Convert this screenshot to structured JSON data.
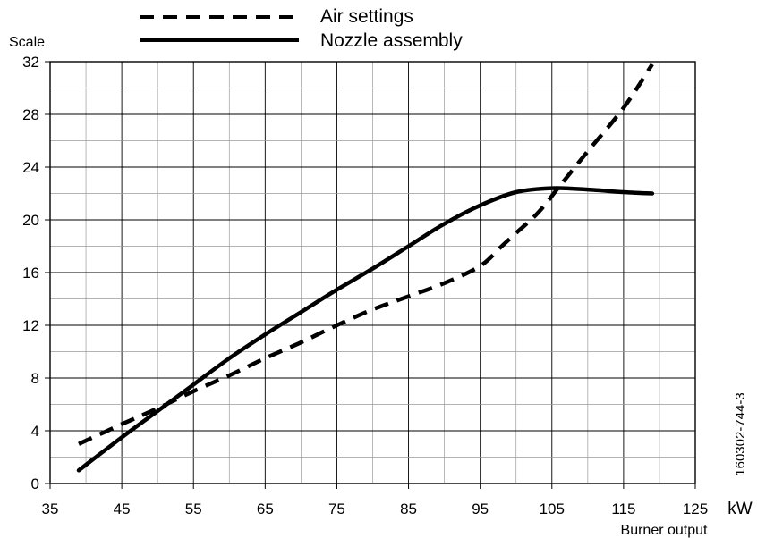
{
  "chart_data": {
    "type": "line",
    "ylabel": "Scale",
    "xlabel": "Burner output",
    "xunit": "kW",
    "figure_id": "160302-744-3",
    "xlim": [
      35,
      125
    ],
    "ylim": [
      0,
      32
    ],
    "xticks": [
      35,
      45,
      55,
      65,
      75,
      85,
      95,
      105,
      115,
      125
    ],
    "yticks": [
      0,
      4,
      8,
      12,
      16,
      20,
      24,
      28,
      32
    ],
    "x_minor_step": 5,
    "y_minor_step": 2,
    "grid": true,
    "legend_position": "top",
    "series": [
      {
        "name": "Air settings",
        "style": "dashed",
        "x": [
          39,
          45,
          50,
          55,
          60,
          65,
          70,
          75,
          80,
          85,
          90,
          95,
          98,
          100,
          103,
          106,
          110,
          115,
          119
        ],
        "y": [
          3,
          4.5,
          5.7,
          7,
          8.2,
          9.5,
          10.7,
          12,
          13.2,
          14.2,
          15.2,
          16.5,
          18,
          19,
          20.5,
          22.5,
          25.2,
          28.5,
          31.8
        ]
      },
      {
        "name": "Nozzle assembly",
        "style": "solid",
        "x": [
          39,
          45,
          50,
          55,
          60,
          65,
          70,
          75,
          80,
          85,
          90,
          95,
          100,
          105,
          110,
          115,
          119
        ],
        "y": [
          1,
          3.5,
          5.5,
          7.5,
          9.5,
          11.3,
          13,
          14.7,
          16.3,
          18,
          19.7,
          21.1,
          22.1,
          22.4,
          22.3,
          22.1,
          22
        ]
      }
    ]
  }
}
